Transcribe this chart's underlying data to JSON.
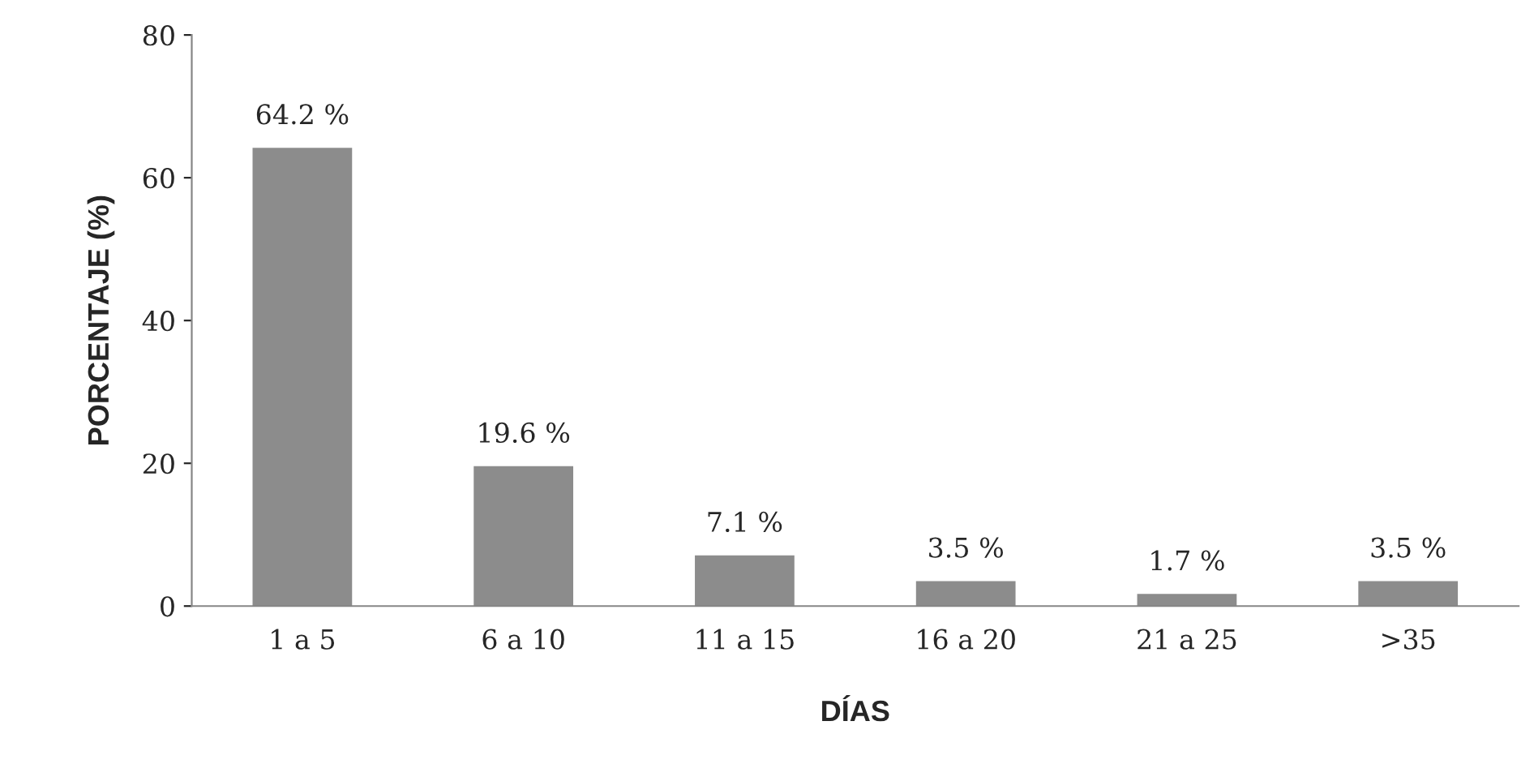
{
  "chart_data": {
    "type": "bar",
    "xlabel": "DÍAS",
    "ylabel": "PORCENTAJE (%)",
    "categories": [
      "1 a 5",
      "6 a 10",
      "11 a 15",
      "16 a 20",
      "21 a 25",
      ">35"
    ],
    "values": [
      64.2,
      19.6,
      7.1,
      3.5,
      1.7,
      3.5
    ],
    "value_labels": [
      "64.2 %",
      "19.6 %",
      "7.1 %",
      "3.5 %",
      "1.7 %",
      "3.5 %"
    ],
    "color": "#8c8c8c",
    "ylim": [
      0,
      80
    ],
    "yticks": [
      0,
      20,
      40,
      60,
      80
    ],
    "grid": false,
    "legend": false
  }
}
